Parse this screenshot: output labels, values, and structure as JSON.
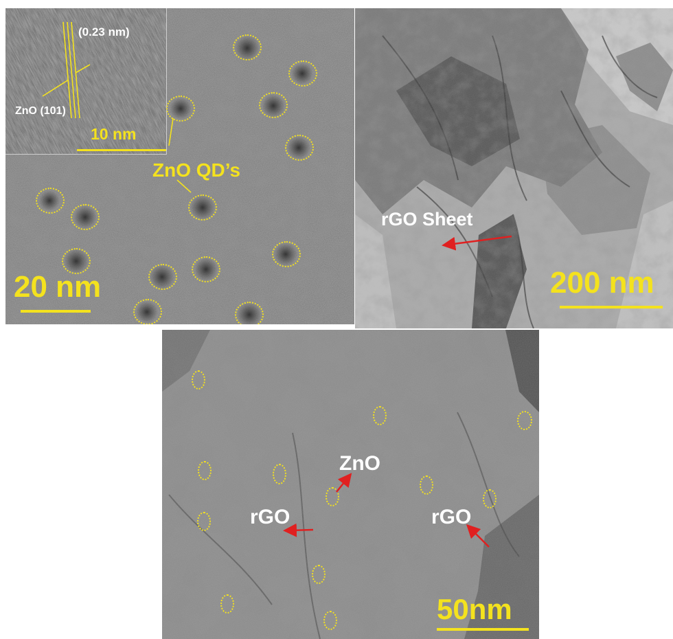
{
  "panels": {
    "a": {
      "inset_spacing": "(0.23 nm)",
      "inset_plane": "ZnO (101)",
      "inset_scale": "10 nm",
      "qd_label": "ZnO QD’s",
      "scale": "20 nm"
    },
    "b": {
      "sheet_label": "rGO Sheet",
      "scale": "200 nm"
    },
    "c": {
      "zno_label": "ZnO",
      "rgo_left": "rGO",
      "rgo_right": "rGO",
      "scale": "50nm"
    }
  },
  "colors": {
    "annotation_yellow": "#f4e21e",
    "arrow_red": "#e02020",
    "label_white": "#ffffff"
  }
}
